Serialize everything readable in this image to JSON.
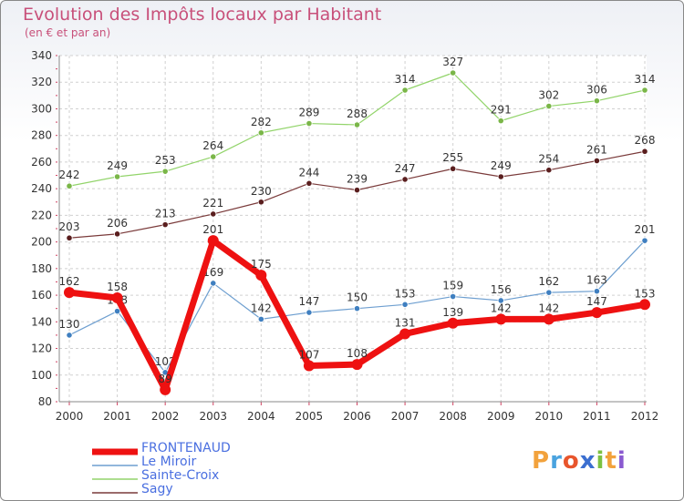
{
  "header": {
    "title": "Evolution des Impôts locaux par Habitant",
    "subtitle": "(en € et par an)"
  },
  "logo": {
    "letters": [
      "P",
      "r",
      "o",
      "x",
      "i",
      "t",
      "i"
    ],
    "colors": [
      "#f2a23c",
      "#4aa3df",
      "#e8552c",
      "#3b6fd0",
      "#7cc142",
      "#f2a23c",
      "#8a5ad0"
    ]
  },
  "chart_data": {
    "type": "line",
    "title": "Evolution des Impôts locaux par Habitant",
    "subtitle": "(en € et par an)",
    "xlabel": "",
    "ylabel": "",
    "categories": [
      "2000",
      "2001",
      "2002",
      "2003",
      "2004",
      "2005",
      "2006",
      "2007",
      "2008",
      "2009",
      "2010",
      "2011",
      "2012"
    ],
    "ylim": [
      80,
      340
    ],
    "yticks": [
      "80",
      "100",
      "120",
      "140",
      "160",
      "180",
      "200",
      "220",
      "240",
      "260",
      "280",
      "300",
      "320",
      "340"
    ],
    "grid": true,
    "legend_position": "bottom-left",
    "series": [
      {
        "name": "Sainte-Croix",
        "color": "#92d46a",
        "marker": "#7ab648",
        "width": 1.2,
        "values": [
          242,
          249,
          253,
          264,
          282,
          289,
          288,
          314,
          327,
          291,
          302,
          306,
          314
        ],
        "labels": [
          "242",
          "249",
          "253",
          "264",
          "282",
          "289",
          "288",
          "314",
          "327",
          "291",
          "302",
          "306",
          "314"
        ]
      },
      {
        "name": "Sagy",
        "color": "#7a3a3a",
        "marker": "#5a1e1e",
        "width": 1.2,
        "values": [
          203,
          206,
          213,
          221,
          230,
          244,
          239,
          247,
          255,
          249,
          254,
          261,
          268
        ],
        "labels": [
          "203",
          "206",
          "213",
          "221",
          "230",
          "244",
          "239",
          "247",
          "255",
          "249",
          "254",
          "261",
          "268"
        ]
      },
      {
        "name": "Le Miroir",
        "color": "#6e9fd0",
        "marker": "#3f7fc0",
        "width": 1.2,
        "values": [
          130,
          148,
          102,
          169,
          142,
          147,
          150,
          153,
          159,
          156,
          162,
          163,
          201
        ],
        "labels": [
          "130",
          "148",
          "102",
          "169",
          "142",
          "147",
          "150",
          "153",
          "159",
          "156",
          "162",
          "163",
          "201"
        ]
      },
      {
        "name": "FRONTENAUD",
        "color": "#ee1111",
        "marker": "#ee1111",
        "width": 7,
        "values": [
          162,
          158,
          89,
          201,
          175,
          107,
          108,
          131,
          139,
          142,
          142,
          147,
          153
        ],
        "labels": [
          "162",
          "158",
          "89",
          "201",
          "175",
          "107",
          "108",
          "131",
          "139",
          "142",
          "142",
          "147",
          "153"
        ]
      }
    ],
    "legend": [
      "FRONTENAUD",
      "Le Miroir",
      "Sainte-Croix",
      "Sagy"
    ]
  }
}
